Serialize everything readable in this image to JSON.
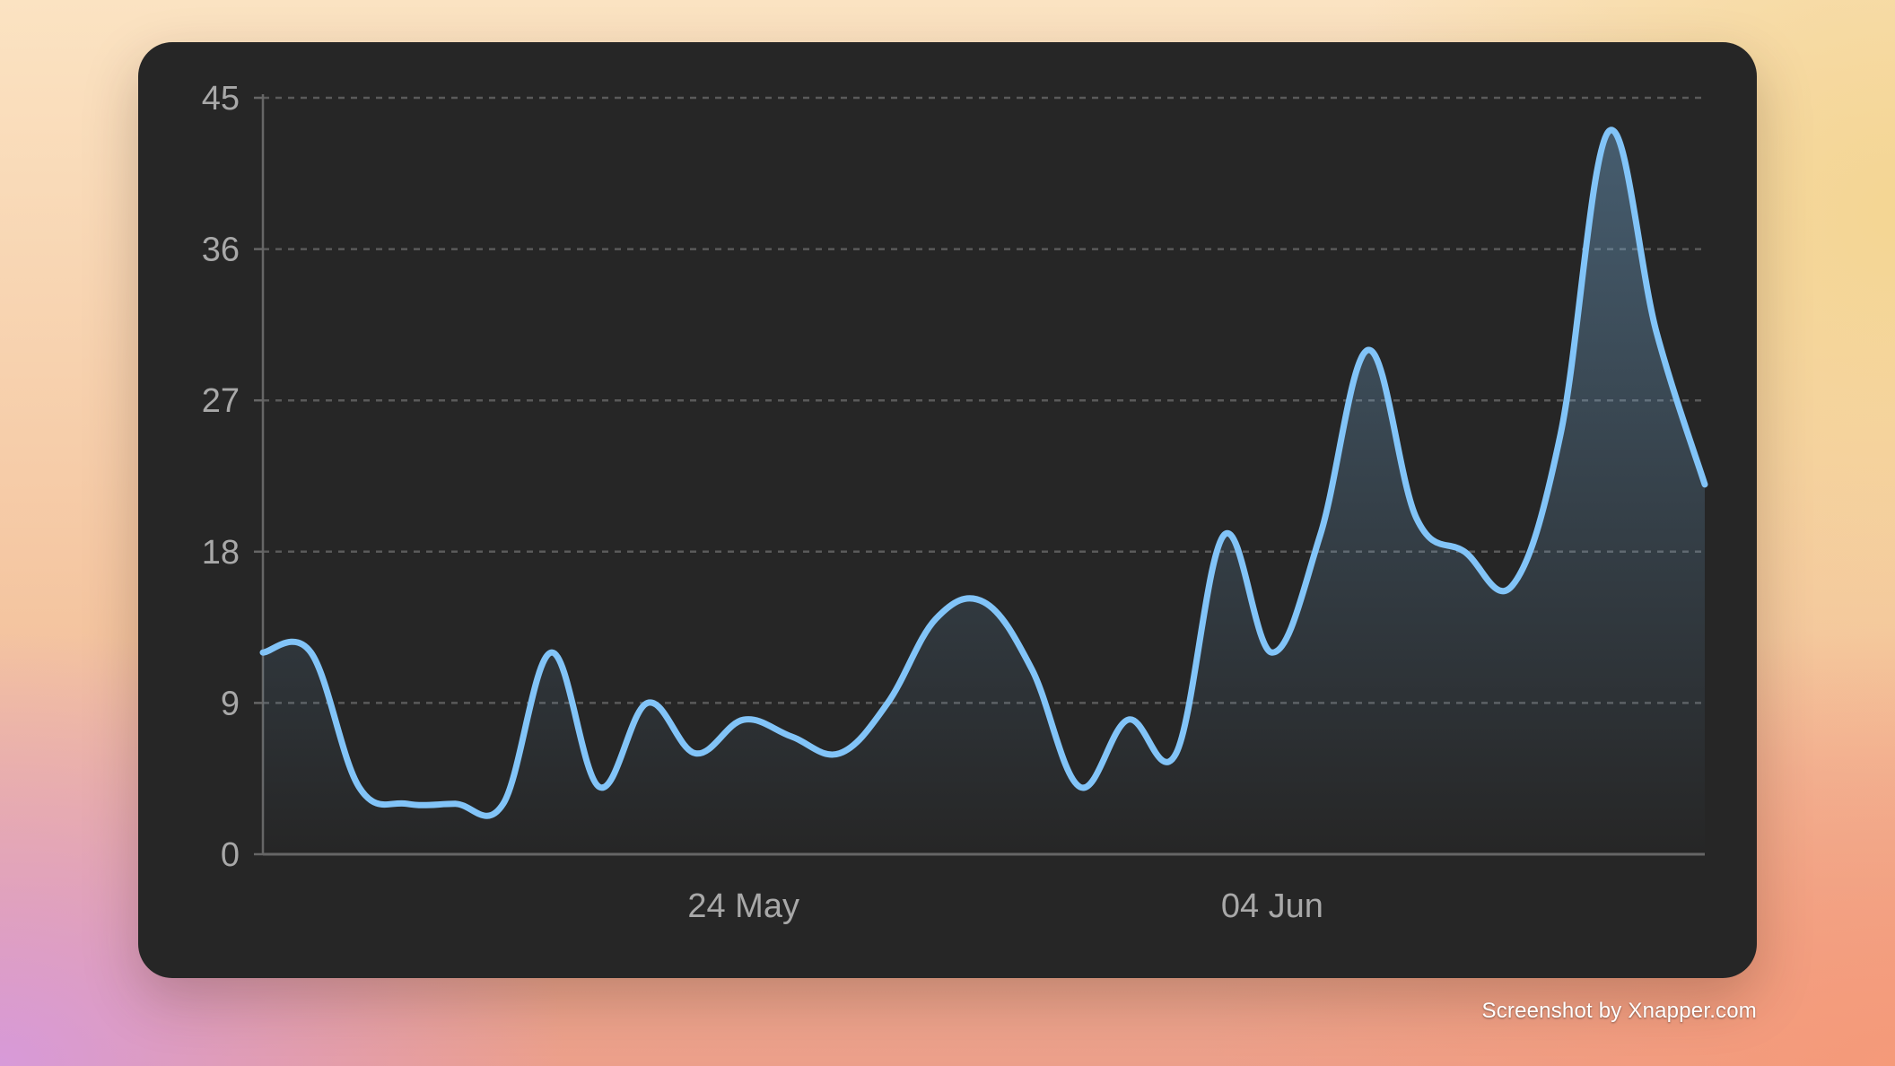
{
  "chart_data": {
    "type": "area",
    "title": "",
    "xlabel": "",
    "ylabel": "",
    "ylim": [
      0,
      45
    ],
    "yticks": [
      0,
      9,
      18,
      27,
      36,
      45
    ],
    "xticks": [
      {
        "date": "2024-05-24",
        "label": "24 May"
      },
      {
        "date": "2024-06-04",
        "label": "04 Jun"
      }
    ],
    "grid": "horizontal dashed",
    "colors": {
      "line": "#82c4f8",
      "grid": "#5a5a5a",
      "axis": "#666666",
      "text": "#a8a8a8",
      "background": "#262626"
    },
    "series": [
      {
        "points": [
          {
            "x": "2024-05-14",
            "y": 12
          },
          {
            "x": "2024-05-15",
            "y": 12
          },
          {
            "x": "2024-05-16",
            "y": 4
          },
          {
            "x": "2024-05-17",
            "y": 3
          },
          {
            "x": "2024-05-18",
            "y": 3
          },
          {
            "x": "2024-05-19",
            "y": 3
          },
          {
            "x": "2024-05-20",
            "y": 12
          },
          {
            "x": "2024-05-21",
            "y": 4
          },
          {
            "x": "2024-05-22",
            "y": 9
          },
          {
            "x": "2024-05-23",
            "y": 6
          },
          {
            "x": "2024-05-24",
            "y": 8
          },
          {
            "x": "2024-05-25",
            "y": 7
          },
          {
            "x": "2024-05-26",
            "y": 6
          },
          {
            "x": "2024-05-27",
            "y": 9
          },
          {
            "x": "2024-05-28",
            "y": 14
          },
          {
            "x": "2024-05-29",
            "y": 15
          },
          {
            "x": "2024-05-30",
            "y": 11
          },
          {
            "x": "2024-05-31",
            "y": 4
          },
          {
            "x": "2024-06-01",
            "y": 8
          },
          {
            "x": "2024-06-02",
            "y": 6
          },
          {
            "x": "2024-06-03",
            "y": 19
          },
          {
            "x": "2024-06-04",
            "y": 12
          },
          {
            "x": "2024-06-05",
            "y": 19
          },
          {
            "x": "2024-06-06",
            "y": 30
          },
          {
            "x": "2024-06-07",
            "y": 20
          },
          {
            "x": "2024-06-08",
            "y": 18
          },
          {
            "x": "2024-06-09",
            "y": 16
          },
          {
            "x": "2024-06-10",
            "y": 25
          },
          {
            "x": "2024-06-11",
            "y": 43
          },
          {
            "x": "2024-06-12",
            "y": 31
          },
          {
            "x": "2024-06-13",
            "y": 22
          }
        ]
      }
    ]
  },
  "watermark": "Screenshot by Xnapper.com"
}
